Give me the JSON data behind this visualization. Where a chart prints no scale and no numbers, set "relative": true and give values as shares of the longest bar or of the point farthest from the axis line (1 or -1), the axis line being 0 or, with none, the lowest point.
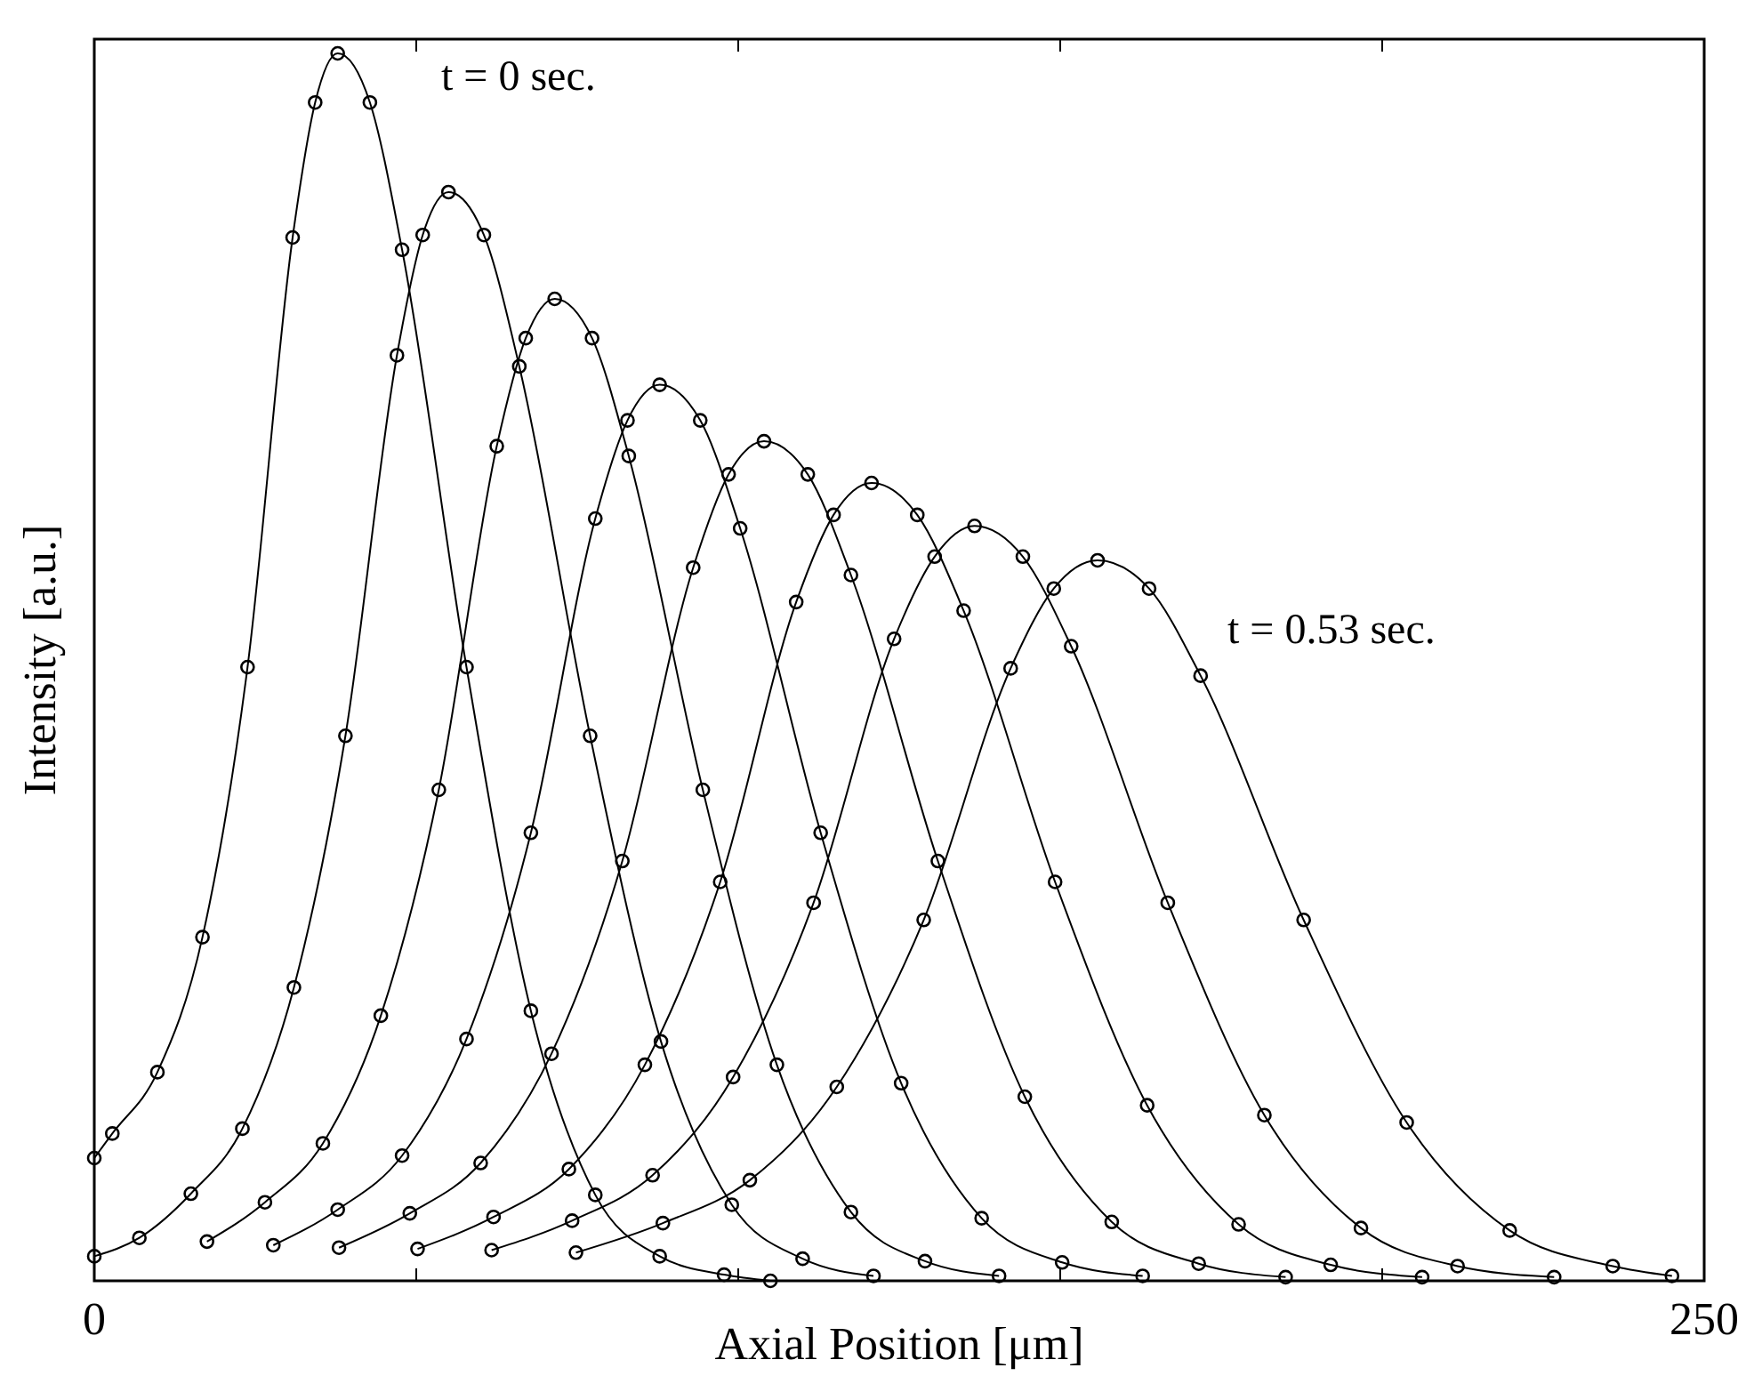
{
  "chart_data": {
    "type": "line",
    "relative": true,
    "xlabel": "Axial Position [μm]",
    "ylabel": "Intensity [a.u.]",
    "xlim": [
      0,
      250
    ],
    "xticks": [
      0,
      {
        "value": 50,
        "label": null
      },
      {
        "value": 100,
        "label": null
      },
      {
        "value": 150,
        "label": null
      },
      {
        "value": 200,
        "label": null
      },
      250
    ],
    "tick_labels": "x",
    "marker": "circle",
    "line_style": "solid",
    "grid": false,
    "annotations": [
      "t = 0 sec.",
      "t = 0.53 sec."
    ],
    "series": [
      {
        "color": "#000000",
        "x": [
          0,
          2.8,
          9.8,
          16.8,
          23.8,
          30.8,
          34.3,
          37.8,
          42.8,
          47.8,
          57.8,
          67.8,
          77.8,
          87.8,
          97.8,
          105
        ],
        "values": [
          0.1,
          0.12,
          0.17,
          0.28,
          0.5,
          0.85,
          0.96,
          1,
          0.96,
          0.84,
          0.5,
          0.22,
          0.07,
          0.02,
          0.005,
          0
        ]
      },
      {
        "color": "#000000",
        "x": [
          0,
          7,
          15,
          23,
          31,
          39,
          47,
          51,
          55,
          60.5,
          66,
          77,
          88,
          99,
          110,
          121
        ],
        "values": [
          0.02,
          0.035,
          0.071,
          0.124,
          0.239,
          0.444,
          0.754,
          0.852,
          0.887,
          0.852,
          0.745,
          0.444,
          0.195,
          0.062,
          0.018,
          0.004
        ]
      },
      {
        "color": "#000000",
        "x": [
          17.5,
          26.5,
          35.5,
          44.5,
          53.5,
          62.5,
          67,
          71.5,
          77.3,
          83,
          94.5,
          106,
          117.5,
          129,
          140.5
        ],
        "values": [
          0.032,
          0.064,
          0.112,
          0.216,
          0.4,
          0.68,
          0.768,
          0.8,
          0.768,
          0.672,
          0.4,
          0.176,
          0.056,
          0.016,
          0.004
        ]
      },
      {
        "color": "#000000",
        "x": [
          27.8,
          37.8,
          47.8,
          57.8,
          67.8,
          77.8,
          82.8,
          87.8,
          94.1,
          100.3,
          112.8,
          125.3,
          137.8,
          150.3,
          162.8
        ],
        "values": [
          0.029,
          0.058,
          0.102,
          0.197,
          0.365,
          0.621,
          0.701,
          0.73,
          0.701,
          0.613,
          0.365,
          0.161,
          0.051,
          0.015,
          0.004
        ]
      },
      {
        "color": "#000000",
        "x": [
          38,
          49,
          60,
          71,
          82,
          93,
          98.5,
          104,
          110.8,
          117.5,
          131,
          144.5,
          158,
          171.5,
          185
        ],
        "values": [
          0.027,
          0.055,
          0.096,
          0.185,
          0.342,
          0.581,
          0.657,
          0.684,
          0.657,
          0.575,
          0.342,
          0.15,
          0.048,
          0.014,
          0.003
        ]
      },
      {
        "color": "#000000",
        "x": [
          50.2,
          62,
          73.7,
          85.5,
          97.2,
          109,
          114.8,
          120.7,
          127.8,
          135,
          149.2,
          163.5,
          177.7,
          192,
          206.2
        ],
        "values": [
          0.026,
          0.052,
          0.091,
          0.176,
          0.325,
          0.553,
          0.624,
          0.65,
          0.624,
          0.546,
          0.325,
          0.143,
          0.046,
          0.013,
          0.003
        ]
      },
      {
        "color": "#000000",
        "x": [
          61.7,
          74.2,
          86.7,
          99.2,
          111.7,
          124.2,
          130.5,
          136.7,
          144.2,
          151.7,
          166.7,
          181.7,
          196.7,
          211.7,
          226.7
        ],
        "values": [
          0.025,
          0.049,
          0.086,
          0.166,
          0.308,
          0.523,
          0.59,
          0.615,
          0.59,
          0.517,
          0.308,
          0.135,
          0.043,
          0.012,
          0.003
        ]
      },
      {
        "color": "#000000",
        "x": [
          74.8,
          88.3,
          101.8,
          115.3,
          128.8,
          142.3,
          149,
          155.8,
          163.8,
          171.8,
          187.8,
          203.8,
          219.8,
          235.8,
          245
        ],
        "values": [
          0.023,
          0.047,
          0.082,
          0.158,
          0.294,
          0.499,
          0.564,
          0.587,
          0.564,
          0.493,
          0.294,
          0.129,
          0.041,
          0.012,
          0.004
        ]
      }
    ]
  }
}
